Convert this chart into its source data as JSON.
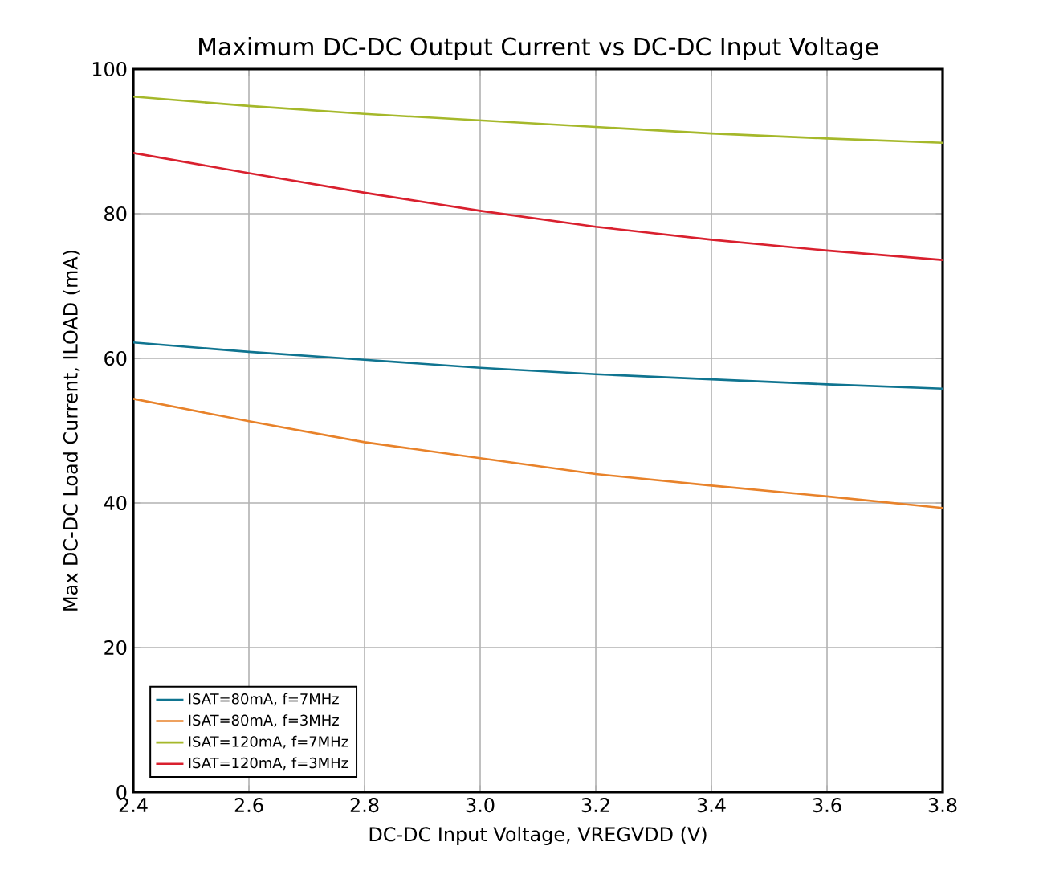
{
  "chart_data": {
    "type": "line",
    "title": "Maximum DC-DC Output Current vs DC-DC Input Voltage",
    "xlabel": "DC-DC Input Voltage, VREGVDD (V)",
    "ylabel": "Max DC-DC Load Current, ILOAD (mA)",
    "x": [
      2.4,
      2.6,
      2.8,
      3.0,
      3.2,
      3.4,
      3.6,
      3.8
    ],
    "series": [
      {
        "name": "ISAT=80mA, f=7MHz",
        "color": "#0f7490",
        "values": [
          62.2,
          60.9,
          59.8,
          58.7,
          57.8,
          57.1,
          56.4,
          55.8
        ]
      },
      {
        "name": "ISAT=80mA, f=3MHz",
        "color": "#e8822a",
        "values": [
          54.4,
          51.3,
          48.4,
          46.2,
          44.0,
          42.4,
          40.9,
          39.3
        ]
      },
      {
        "name": "ISAT=120mA, f=7MHz",
        "color": "#a5b82a",
        "values": [
          96.2,
          94.9,
          93.8,
          92.9,
          92.0,
          91.1,
          90.4,
          89.8
        ]
      },
      {
        "name": "ISAT=120mA, f=3MHz",
        "color": "#d9202e",
        "values": [
          88.4,
          85.6,
          82.9,
          80.4,
          78.2,
          76.4,
          74.9,
          73.6
        ]
      }
    ],
    "xlim": [
      2.4,
      3.8
    ],
    "ylim": [
      0,
      100
    ],
    "xticks": [
      2.4,
      2.6,
      2.8,
      {
        "value": 3.0,
        "label": "3.0"
      },
      3.2,
      3.4,
      3.6,
      3.8
    ],
    "yticks": [
      0,
      20,
      40,
      60,
      80,
      100
    ],
    "grid": true,
    "legend": "bottom left",
    "marker": "none",
    "line_style": "solid"
  }
}
